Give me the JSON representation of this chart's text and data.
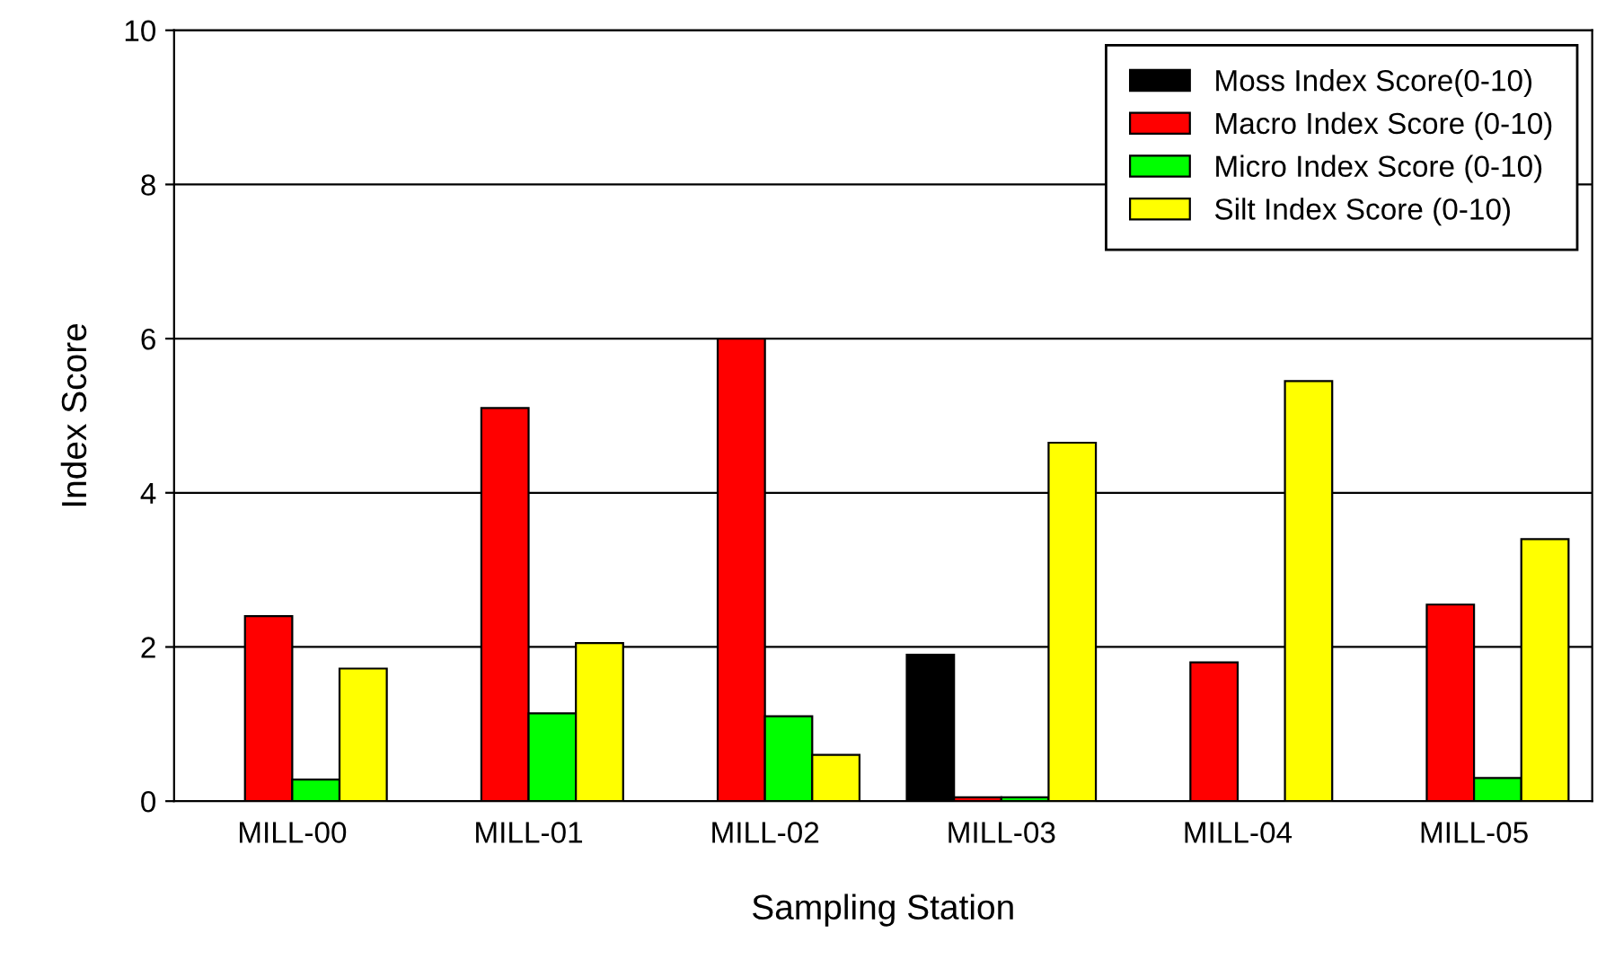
{
  "chart_data": {
    "type": "bar",
    "xlabel": "Sampling Station",
    "ylabel": "Index Score",
    "categories": [
      "MILL-00",
      "MILL-01",
      "MILL-02",
      "MILL-03",
      "MILL-04",
      "MILL-05"
    ],
    "series": [
      {
        "name": "Moss Index Score(0-10)",
        "color": "#000000",
        "values": [
          null,
          null,
          null,
          1.9,
          null,
          null
        ]
      },
      {
        "name": "Macro Index Score (0-10)",
        "color": "#ff0000",
        "values": [
          2.4,
          5.1,
          6.0,
          0.05,
          1.8,
          2.55
        ]
      },
      {
        "name": "Micro Index Score (0-10)",
        "color": "#00ff00",
        "values": [
          0.28,
          1.14,
          1.1,
          0.05,
          null,
          0.3
        ]
      },
      {
        "name": "Silt Index Score (0-10)",
        "color": "#ffff00",
        "values": [
          1.72,
          2.05,
          0.6,
          4.65,
          5.45,
          3.4
        ]
      }
    ],
    "ylim": [
      0,
      10
    ],
    "yticks": [
      0,
      2,
      4,
      6,
      8,
      10
    ],
    "grid": "y",
    "legend": "top right"
  }
}
